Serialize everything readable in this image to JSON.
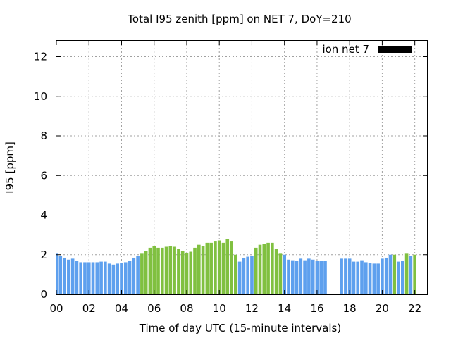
{
  "chart_data": {
    "type": "bar",
    "title": "Total I95 zenith [ppm] on NET 7, DoY=210",
    "xlabel": "Time of day UTC (15-minute intervals)",
    "ylabel": "I95 [ppm]",
    "xlim": [
      0,
      22.75
    ],
    "ylim": [
      0,
      12.8
    ],
    "x_ticks": [
      "00",
      "02",
      "04",
      "06",
      "08",
      "10",
      "12",
      "14",
      "16",
      "18",
      "20",
      "22"
    ],
    "y_ticks": [
      "0",
      "2",
      "4",
      "6",
      "8",
      "10",
      "12"
    ],
    "grid": true,
    "legend_position": "top-right",
    "bar_interval_hours": 0.25,
    "colors": {
      "low": "#5ea0ee",
      "high": "#80c040",
      "legend": "#000000",
      "grid": "#a0a0a0"
    },
    "series": [
      {
        "name": "ion net 7",
        "values": [
          2.05,
          1.95,
          1.85,
          1.75,
          1.8,
          1.7,
          1.62,
          1.62,
          1.62,
          1.62,
          1.62,
          1.65,
          1.65,
          1.55,
          1.5,
          1.55,
          1.6,
          1.62,
          1.7,
          1.85,
          1.95,
          2.05,
          2.2,
          2.35,
          2.45,
          2.35,
          2.35,
          2.4,
          2.45,
          2.4,
          2.3,
          2.2,
          2.1,
          2.15,
          2.35,
          2.5,
          2.45,
          2.6,
          2.6,
          2.7,
          2.72,
          2.6,
          2.8,
          2.7,
          2.0,
          1.65,
          1.85,
          1.9,
          1.95,
          2.35,
          2.5,
          2.55,
          2.6,
          2.6,
          2.3,
          2.05,
          2.0,
          1.75,
          1.72,
          1.7,
          1.8,
          1.72,
          1.8,
          1.75,
          1.68,
          1.68,
          1.68,
          null,
          null,
          null,
          1.8,
          1.8,
          1.8,
          1.65,
          1.65,
          1.72,
          1.62,
          1.6,
          1.55,
          1.55,
          1.8,
          1.85,
          2.0,
          2.0,
          1.65,
          1.7,
          2.05,
          1.95,
          2.0
        ],
        "category": [
          "low",
          "low",
          "low",
          "low",
          "low",
          "low",
          "low",
          "low",
          "low",
          "low",
          "low",
          "low",
          "low",
          "low",
          "low",
          "low",
          "low",
          "low",
          "low",
          "low",
          "low",
          "high",
          "high",
          "high",
          "high",
          "high",
          "high",
          "high",
          "high",
          "high",
          "high",
          "high",
          "high",
          "high",
          "high",
          "high",
          "high",
          "high",
          "high",
          "high",
          "high",
          "high",
          "high",
          "high",
          "high",
          "low",
          "low",
          "low",
          "low",
          "high",
          "high",
          "high",
          "high",
          "high",
          "high",
          "high",
          "low",
          "low",
          "low",
          "low",
          "low",
          "low",
          "low",
          "low",
          "low",
          "low",
          "low",
          null,
          null,
          null,
          "low",
          "low",
          "low",
          "low",
          "low",
          "low",
          "low",
          "low",
          "low",
          "low",
          "low",
          "low",
          "low",
          "high",
          "low",
          "low",
          "high",
          "low",
          "high"
        ]
      }
    ]
  }
}
